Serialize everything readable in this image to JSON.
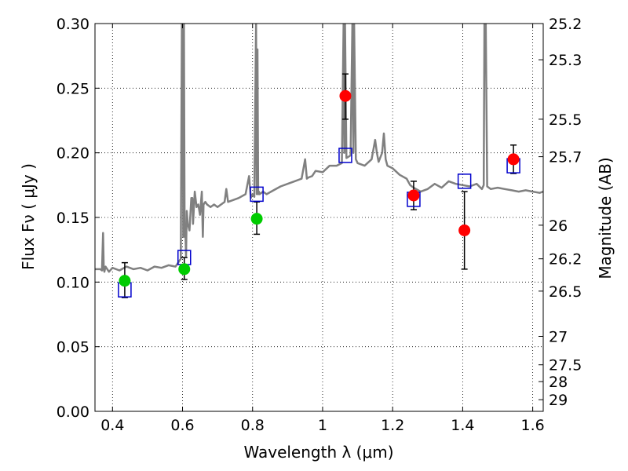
{
  "chart_data": {
    "type": "scatter",
    "xlabel": "Wavelength  λ (μm)",
    "ylabel": "Flux  Fν  ( μJy )",
    "ylabel_right": "Magnitude (AB)",
    "xlim": [
      0.35,
      1.63
    ],
    "ylim": [
      0.0,
      0.3
    ],
    "grid": true,
    "x_ticks": [
      0.4,
      0.6,
      0.8,
      1.0,
      1.2,
      1.4,
      1.6
    ],
    "x_tick_labels": [
      "0.4",
      "0.6",
      "0.8",
      "1",
      "1.2",
      "1.4",
      "1.6"
    ],
    "y_ticks": [
      0.0,
      0.05,
      0.1,
      0.15,
      0.2,
      0.25,
      0.3
    ],
    "y_tick_labels": [
      "0.00",
      "0.05",
      "0.10",
      "0.15",
      "0.20",
      "0.25",
      "0.30"
    ],
    "right_ticks": [
      {
        "flux": 0.3,
        "label": "25.2"
      },
      {
        "flux": 0.272,
        "label": "25.3"
      },
      {
        "flux": 0.226,
        "label": "25.5"
      },
      {
        "flux": 0.197,
        "label": "25.7"
      },
      {
        "flux": 0.144,
        "label": "26"
      },
      {
        "flux": 0.118,
        "label": "26.2"
      },
      {
        "flux": 0.093,
        "label": "26.5"
      },
      {
        "flux": 0.058,
        "label": "27"
      },
      {
        "flux": 0.036,
        "label": "27.5"
      },
      {
        "flux": 0.023,
        "label": "28"
      },
      {
        "flux": 0.009,
        "label": "29"
      }
    ],
    "series": [
      {
        "kind": "model-spectrum",
        "color": "#808080",
        "x": [
          0.35,
          0.365,
          0.37,
          0.373,
          0.375,
          0.377,
          0.38,
          0.39,
          0.4,
          0.42,
          0.44,
          0.46,
          0.48,
          0.5,
          0.52,
          0.54,
          0.56,
          0.58,
          0.595,
          0.6,
          0.602,
          0.604,
          0.606,
          0.608,
          0.61,
          0.612,
          0.615,
          0.62,
          0.625,
          0.628,
          0.63,
          0.635,
          0.64,
          0.645,
          0.65,
          0.655,
          0.658,
          0.66,
          0.665,
          0.67,
          0.68,
          0.69,
          0.7,
          0.71,
          0.72,
          0.725,
          0.73,
          0.74,
          0.76,
          0.78,
          0.79,
          0.795,
          0.8,
          0.805,
          0.81,
          0.812,
          0.814,
          0.816,
          0.818,
          0.82,
          0.83,
          0.84,
          0.86,
          0.88,
          0.9,
          0.92,
          0.94,
          0.95,
          0.955,
          0.96,
          0.97,
          0.98,
          1.0,
          1.02,
          1.04,
          1.055,
          1.06,
          1.062,
          1.064,
          1.068,
          1.08,
          1.085,
          1.088,
          1.09,
          1.095,
          1.1,
          1.12,
          1.14,
          1.15,
          1.155,
          1.16,
          1.17,
          1.175,
          1.18,
          1.185,
          1.2,
          1.22,
          1.24,
          1.25,
          1.26,
          1.28,
          1.3,
          1.32,
          1.34,
          1.36,
          1.38,
          1.4,
          1.42,
          1.44,
          1.455,
          1.46,
          1.462,
          1.466,
          1.47,
          1.48,
          1.5,
          1.52,
          1.54,
          1.56,
          1.58,
          1.6,
          1.62,
          1.63
        ],
        "y": [
          0.11,
          0.11,
          0.109,
          0.138,
          0.11,
          0.108,
          0.112,
          0.108,
          0.111,
          0.109,
          0.112,
          0.11,
          0.111,
          0.109,
          0.112,
          0.111,
          0.113,
          0.112,
          0.118,
          0.4,
          0.135,
          0.3,
          0.135,
          0.14,
          0.12,
          0.155,
          0.145,
          0.14,
          0.165,
          0.165,
          0.145,
          0.17,
          0.158,
          0.16,
          0.152,
          0.17,
          0.135,
          0.16,
          0.162,
          0.16,
          0.158,
          0.16,
          0.158,
          0.16,
          0.162,
          0.172,
          0.162,
          0.163,
          0.165,
          0.168,
          0.182,
          0.165,
          0.168,
          0.166,
          0.3,
          0.168,
          0.28,
          0.168,
          0.17,
          0.168,
          0.17,
          0.168,
          0.171,
          0.174,
          0.176,
          0.178,
          0.18,
          0.195,
          0.18,
          0.181,
          0.182,
          0.186,
          0.185,
          0.19,
          0.19,
          0.192,
          0.3,
          0.2,
          0.3,
          0.196,
          0.198,
          0.3,
          0.2,
          0.3,
          0.195,
          0.192,
          0.19,
          0.195,
          0.21,
          0.2,
          0.193,
          0.2,
          0.215,
          0.195,
          0.19,
          0.188,
          0.183,
          0.18,
          0.175,
          0.173,
          0.17,
          0.172,
          0.176,
          0.173,
          0.178,
          0.176,
          0.175,
          0.174,
          0.176,
          0.172,
          0.175,
          0.3,
          0.3,
          0.174,
          0.172,
          0.173,
          0.172,
          0.171,
          0.17,
          0.171,
          0.17,
          0.169,
          0.17
        ]
      },
      {
        "kind": "model-photometry",
        "marker": "open-square",
        "color": "#0000cc",
        "x": [
          0.435,
          0.605,
          0.812,
          1.065,
          1.26,
          1.405,
          1.545
        ],
        "y": [
          0.094,
          0.119,
          0.168,
          0.198,
          0.164,
          0.178,
          0.19
        ]
      },
      {
        "kind": "observed",
        "marker": "filled-circle",
        "color": "#00cc00",
        "x": [
          0.435,
          0.605,
          0.812
        ],
        "y": [
          0.101,
          0.11,
          0.149
        ],
        "err_low": [
          0.088,
          0.102,
          0.137
        ],
        "err_high": [
          0.115,
          0.119,
          0.162
        ]
      },
      {
        "kind": "observed",
        "marker": "filled-circle",
        "color": "#ff0000",
        "x": [
          1.065,
          1.26,
          1.405,
          1.545
        ],
        "y": [
          0.244,
          0.167,
          0.14,
          0.195
        ],
        "err_low": [
          0.226,
          0.156,
          0.11,
          0.184
        ],
        "err_high": [
          0.261,
          0.178,
          0.17,
          0.206
        ]
      }
    ]
  }
}
